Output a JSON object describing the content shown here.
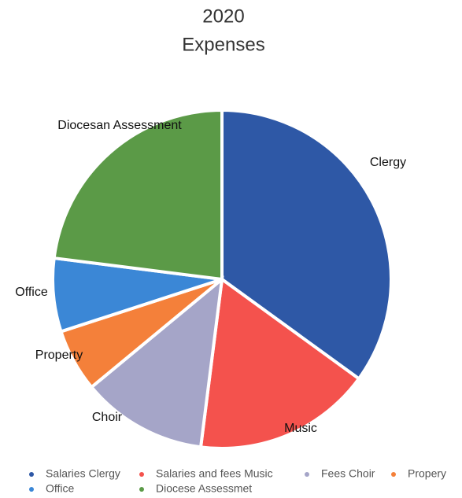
{
  "chart_data": {
    "type": "pie",
    "title": "2020",
    "subtitle": "Expenses",
    "categories": [
      "Salaries Clergy",
      "Salaries and fees Music",
      "Fees Choir",
      "Propery",
      "Office",
      "Diocese Assessmet"
    ],
    "labels": [
      "Clergy",
      "Music",
      "Choir",
      "Property",
      "Office",
      "Diocesan Assessment"
    ],
    "values": [
      35,
      17,
      12,
      6,
      7,
      23
    ],
    "colors": [
      "#2e58a6",
      "#f4524d",
      "#a5a5c8",
      "#f4803a",
      "#3b87d6",
      "#5b9a47"
    ],
    "legend": "bottom"
  }
}
